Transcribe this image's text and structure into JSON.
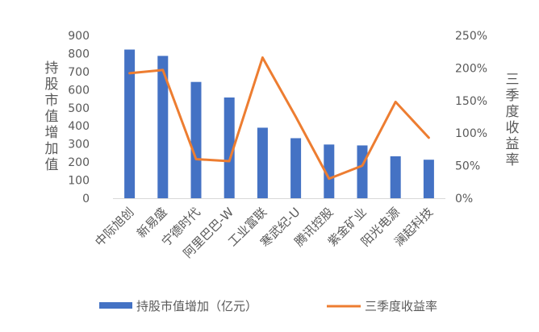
{
  "chart_data": {
    "type": "bar",
    "categories": [
      "中际旭创",
      "新易盛",
      "宁德时代",
      "阿里巴巴-W",
      "工业富联",
      "寒武纪-U",
      "腾讯控股",
      "紫金矿业",
      "阳光电源",
      "澜起科技"
    ],
    "series": [
      {
        "name": "持股市值增加（亿元）",
        "type": "bar",
        "axis": "left",
        "color": "#4472C4",
        "values": [
          822,
          787,
          643,
          557,
          390,
          332,
          297,
          292,
          232,
          213
        ]
      },
      {
        "name": "三季度收益率",
        "type": "line",
        "axis": "right",
        "color": "#ED7D31",
        "values": [
          1.92,
          1.97,
          0.6,
          0.57,
          2.16,
          1.25,
          0.3,
          0.5,
          1.48,
          0.93
        ]
      }
    ],
    "ylabel": "持股市值增加值",
    "y2label": "三季度收益率",
    "ylim": [
      0,
      900
    ],
    "y2lim": [
      0,
      2.5
    ],
    "yticks": [
      "0",
      "100",
      "200",
      "300",
      "400",
      "500",
      "600",
      "700",
      "800",
      "900"
    ],
    "y2ticks": [
      "0%",
      "50%",
      "100%",
      "150%",
      "200%",
      "250%"
    ],
    "grid": false,
    "legend_position": "bottom"
  }
}
